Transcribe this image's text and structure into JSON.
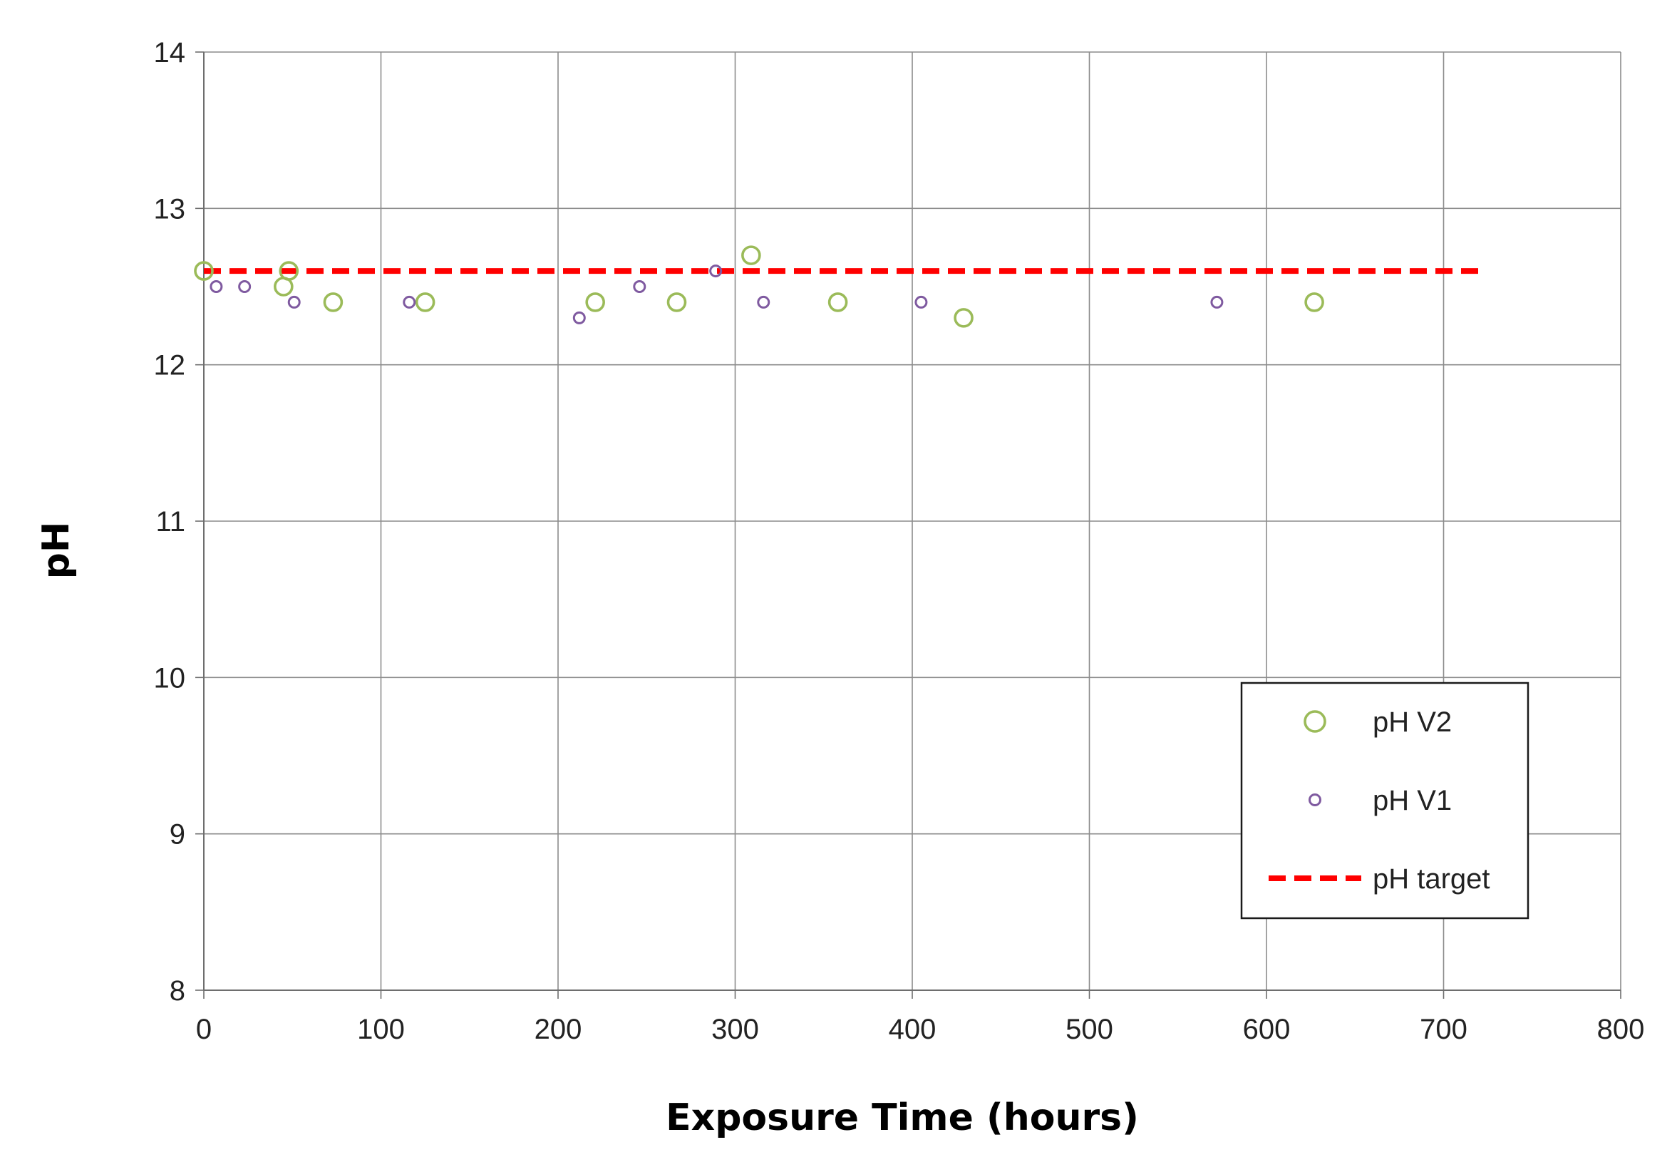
{
  "chart_data": {
    "type": "scatter",
    "xlabel": "Exposure Time (hours)",
    "ylabel": "pH",
    "xlim": [
      0,
      800
    ],
    "ylim": [
      8,
      14
    ],
    "x_ticks": [
      "0",
      "100",
      "200",
      "300",
      "400",
      "500",
      "600",
      "700",
      "800"
    ],
    "y_ticks": [
      "8",
      "9",
      "10",
      "11",
      "12",
      "13",
      "14"
    ],
    "grid": true,
    "legend_position": "lower-right",
    "series": [
      {
        "name": "pH V2",
        "marker": "open-circle-large",
        "color": "#9bbb59",
        "points": [
          {
            "x": 0,
            "y": 12.6
          },
          {
            "x": 45,
            "y": 12.5
          },
          {
            "x": 48,
            "y": 12.6
          },
          {
            "x": 73,
            "y": 12.4
          },
          {
            "x": 125,
            "y": 12.4
          },
          {
            "x": 221,
            "y": 12.4
          },
          {
            "x": 267,
            "y": 12.4
          },
          {
            "x": 309,
            "y": 12.7
          },
          {
            "x": 358,
            "y": 12.4
          },
          {
            "x": 429,
            "y": 12.3
          },
          {
            "x": 627,
            "y": 12.4
          }
        ]
      },
      {
        "name": "pH V1",
        "marker": "open-circle-small",
        "color": "#7f5aa0",
        "points": [
          {
            "x": 7,
            "y": 12.5
          },
          {
            "x": 23,
            "y": 12.5
          },
          {
            "x": 51,
            "y": 12.4
          },
          {
            "x": 116,
            "y": 12.4
          },
          {
            "x": 212,
            "y": 12.3
          },
          {
            "x": 246,
            "y": 12.5
          },
          {
            "x": 289,
            "y": 12.6
          },
          {
            "x": 316,
            "y": 12.4
          },
          {
            "x": 405,
            "y": 12.4
          },
          {
            "x": 572,
            "y": 12.4
          }
        ]
      },
      {
        "name": "pH target",
        "marker": "dashed-line",
        "color": "#ff0000",
        "points": [
          {
            "x": 0,
            "y": 12.6
          },
          {
            "x": 720,
            "y": 12.6
          }
        ]
      }
    ]
  }
}
